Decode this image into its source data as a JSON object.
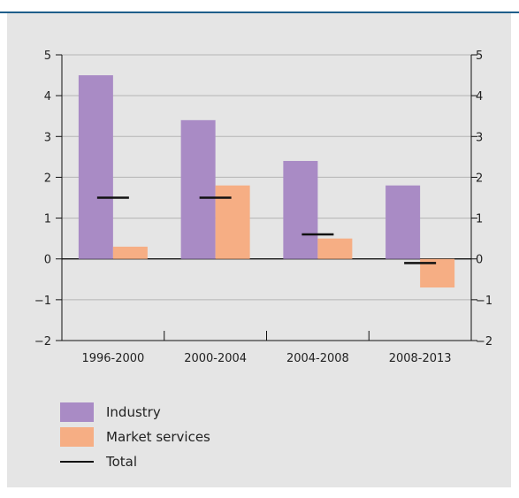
{
  "colors": {
    "industry": "#a98bc5",
    "market_services": "#f6ae84",
    "total": "#111111",
    "panel_bg": "#e5e5e5",
    "rule": "#1f5f8b"
  },
  "chart_data": {
    "type": "bar",
    "title": "",
    "xlabel": "",
    "ylabel": "",
    "categories": [
      "1996-2000",
      "2000-2004",
      "2004-2008",
      "2008-2013"
    ],
    "series": [
      {
        "name": "Industry",
        "values": [
          4.5,
          3.4,
          2.4,
          1.8
        ]
      },
      {
        "name": "Market services",
        "values": [
          0.3,
          1.8,
          0.5,
          -0.7
        ]
      }
    ],
    "markers": {
      "name": "Total",
      "values": [
        1.5,
        1.5,
        0.6,
        -0.1
      ]
    },
    "ylim": [
      -2,
      5
    ],
    "yticks": [
      "5",
      "4",
      "3",
      "2",
      "1",
      "0",
      "−1",
      "−2"
    ],
    "grid": true,
    "right_axis": true,
    "legend_placement": "bottom-left"
  },
  "legend": {
    "industry": "Industry",
    "market_services": "Market services",
    "total": "Total"
  }
}
